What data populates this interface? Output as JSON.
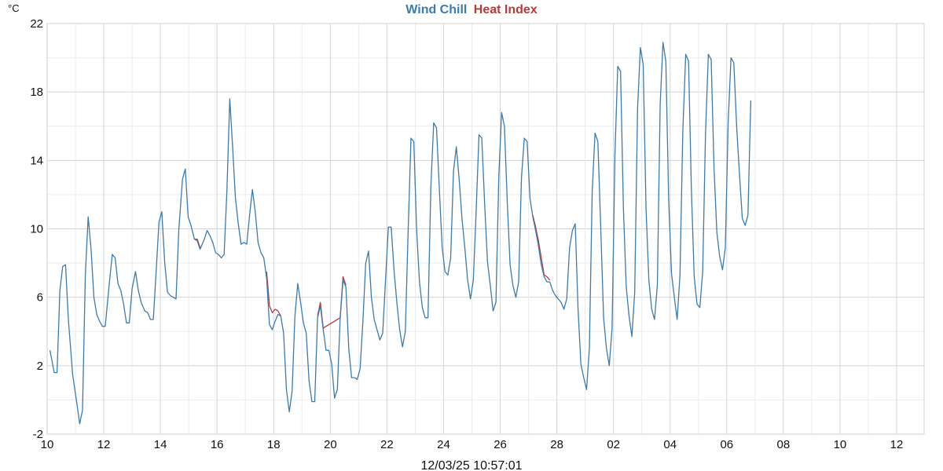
{
  "chart_data": {
    "type": "line",
    "title": "",
    "ylabel": "°C",
    "xlabel": "",
    "timestamp": "12/03/25 10:57:01",
    "ylim": [
      -2,
      22
    ],
    "yticks": [
      -2,
      2,
      6,
      10,
      14,
      18,
      22
    ],
    "xticks": [
      {
        "pos": 0,
        "label": "10"
      },
      {
        "pos": 2,
        "label": "12"
      },
      {
        "pos": 4,
        "label": "14"
      },
      {
        "pos": 6,
        "label": "16"
      },
      {
        "pos": 8,
        "label": "18"
      },
      {
        "pos": 10,
        "label": "20"
      },
      {
        "pos": 12,
        "label": "22"
      },
      {
        "pos": 14,
        "label": "24"
      },
      {
        "pos": 16,
        "label": "26"
      },
      {
        "pos": 18,
        "label": "28"
      },
      {
        "pos": 20,
        "label": "02"
      },
      {
        "pos": 22,
        "label": "04"
      },
      {
        "pos": 24,
        "label": "06"
      },
      {
        "pos": 26,
        "label": "08"
      },
      {
        "pos": 28,
        "label": "10"
      },
      {
        "pos": 30,
        "label": "12"
      }
    ],
    "xlim": [
      0,
      30.9
    ],
    "grid": true,
    "legend": "top-center",
    "x_unit": "day index from first tick label (fractional)",
    "series": [
      {
        "name": "Wind Chill",
        "color": "#3b7bb0",
        "points": [
          [
            0.1,
            2.9
          ],
          [
            0.25,
            1.6
          ],
          [
            0.35,
            1.6
          ],
          [
            0.45,
            6.4
          ],
          [
            0.55,
            7.8
          ],
          [
            0.65,
            7.9
          ],
          [
            0.75,
            4.7
          ],
          [
            0.9,
            1.5
          ],
          [
            1.05,
            -0.2
          ],
          [
            1.15,
            -1.4
          ],
          [
            1.25,
            -0.6
          ],
          [
            1.35,
            7.3
          ],
          [
            1.45,
            10.7
          ],
          [
            1.55,
            8.8
          ],
          [
            1.65,
            6.0
          ],
          [
            1.75,
            5.0
          ],
          [
            1.85,
            4.6
          ],
          [
            1.95,
            4.3
          ],
          [
            2.05,
            4.3
          ],
          [
            2.2,
            6.9
          ],
          [
            2.3,
            8.5
          ],
          [
            2.4,
            8.3
          ],
          [
            2.5,
            6.8
          ],
          [
            2.6,
            6.4
          ],
          [
            2.7,
            5.6
          ],
          [
            2.8,
            4.5
          ],
          [
            2.9,
            4.5
          ],
          [
            3.0,
            6.5
          ],
          [
            3.12,
            7.5
          ],
          [
            3.22,
            6.4
          ],
          [
            3.32,
            5.7
          ],
          [
            3.45,
            5.2
          ],
          [
            3.55,
            5.1
          ],
          [
            3.65,
            4.7
          ],
          [
            3.75,
            4.7
          ],
          [
            3.85,
            7.5
          ],
          [
            3.95,
            10.4
          ],
          [
            4.05,
            11.0
          ],
          [
            4.15,
            8.1
          ],
          [
            4.25,
            6.3
          ],
          [
            4.35,
            6.1
          ],
          [
            4.45,
            6.0
          ],
          [
            4.55,
            5.9
          ],
          [
            4.65,
            10.0
          ],
          [
            4.78,
            12.9
          ],
          [
            4.88,
            13.5
          ],
          [
            4.98,
            10.7
          ],
          [
            5.08,
            10.2
          ],
          [
            5.2,
            9.4
          ],
          [
            5.3,
            9.3
          ],
          [
            5.4,
            8.8
          ],
          [
            5.55,
            9.4
          ],
          [
            5.65,
            9.9
          ],
          [
            5.75,
            9.6
          ],
          [
            5.85,
            9.2
          ],
          [
            5.95,
            8.6
          ],
          [
            6.05,
            8.5
          ],
          [
            6.15,
            8.3
          ],
          [
            6.25,
            8.5
          ],
          [
            6.35,
            12.3
          ],
          [
            6.45,
            17.6
          ],
          [
            6.55,
            14.8
          ],
          [
            6.65,
            11.8
          ],
          [
            6.75,
            10.3
          ],
          [
            6.85,
            9.1
          ],
          [
            6.95,
            9.2
          ],
          [
            7.05,
            9.1
          ],
          [
            7.15,
            10.8
          ],
          [
            7.25,
            12.3
          ],
          [
            7.35,
            11.0
          ],
          [
            7.45,
            9.2
          ],
          [
            7.55,
            8.6
          ],
          [
            7.65,
            8.3
          ],
          [
            7.75,
            7.1
          ],
          [
            7.85,
            4.4
          ],
          [
            7.95,
            4.1
          ],
          [
            8.05,
            4.6
          ],
          [
            8.15,
            5.0
          ],
          [
            8.25,
            4.9
          ],
          [
            8.35,
            3.9
          ],
          [
            8.45,
            0.6
          ],
          [
            8.55,
            -0.7
          ],
          [
            8.65,
            0.5
          ],
          [
            8.75,
            4.9
          ],
          [
            8.85,
            6.8
          ],
          [
            8.95,
            5.7
          ],
          [
            9.05,
            4.5
          ],
          [
            9.15,
            3.9
          ],
          [
            9.25,
            1.1
          ],
          [
            9.35,
            -0.1
          ],
          [
            9.45,
            -0.1
          ],
          [
            9.55,
            4.8
          ],
          [
            9.65,
            5.5
          ],
          [
            9.75,
            4.1
          ],
          [
            9.85,
            2.9
          ],
          [
            9.95,
            2.9
          ],
          [
            10.05,
            2.1
          ],
          [
            10.15,
            0.1
          ],
          [
            10.25,
            0.6
          ],
          [
            10.35,
            4.8
          ],
          [
            10.45,
            7.0
          ],
          [
            10.55,
            6.6
          ],
          [
            10.65,
            3.0
          ],
          [
            10.75,
            1.3
          ],
          [
            10.85,
            1.3
          ],
          [
            10.95,
            1.2
          ],
          [
            11.05,
            1.8
          ],
          [
            11.15,
            4.6
          ],
          [
            11.25,
            8.0
          ],
          [
            11.35,
            8.7
          ],
          [
            11.45,
            6.0
          ],
          [
            11.55,
            4.7
          ],
          [
            11.65,
            4.1
          ],
          [
            11.75,
            3.5
          ],
          [
            11.85,
            3.9
          ],
          [
            11.95,
            7.0
          ],
          [
            12.05,
            10.1
          ],
          [
            12.15,
            10.1
          ],
          [
            12.25,
            7.6
          ],
          [
            12.35,
            5.7
          ],
          [
            12.45,
            4.1
          ],
          [
            12.55,
            3.1
          ],
          [
            12.65,
            4.0
          ],
          [
            12.75,
            9.9
          ],
          [
            12.85,
            15.3
          ],
          [
            12.95,
            15.1
          ],
          [
            13.05,
            9.9
          ],
          [
            13.15,
            6.9
          ],
          [
            13.25,
            5.4
          ],
          [
            13.35,
            4.8
          ],
          [
            13.45,
            4.8
          ],
          [
            13.55,
            12.5
          ],
          [
            13.65,
            16.2
          ],
          [
            13.75,
            15.9
          ],
          [
            13.85,
            12.3
          ],
          [
            13.95,
            8.9
          ],
          [
            14.05,
            7.5
          ],
          [
            14.15,
            7.3
          ],
          [
            14.25,
            8.3
          ],
          [
            14.35,
            13.4
          ],
          [
            14.45,
            14.8
          ],
          [
            14.55,
            12.9
          ],
          [
            14.65,
            10.6
          ],
          [
            14.75,
            8.9
          ],
          [
            14.85,
            7.0
          ],
          [
            14.95,
            5.9
          ],
          [
            15.05,
            7.0
          ],
          [
            15.15,
            11.0
          ],
          [
            15.25,
            15.5
          ],
          [
            15.35,
            15.3
          ],
          [
            15.45,
            11.5
          ],
          [
            15.55,
            8.1
          ],
          [
            15.65,
            6.7
          ],
          [
            15.75,
            5.2
          ],
          [
            15.85,
            5.7
          ],
          [
            15.95,
            13.0
          ],
          [
            16.05,
            16.8
          ],
          [
            16.15,
            16.0
          ],
          [
            16.25,
            11.6
          ],
          [
            16.35,
            7.9
          ],
          [
            16.45,
            6.7
          ],
          [
            16.55,
            6.0
          ],
          [
            16.65,
            6.9
          ],
          [
            16.75,
            13.0
          ],
          [
            16.85,
            15.3
          ],
          [
            16.95,
            15.1
          ],
          [
            17.05,
            11.8
          ],
          [
            17.15,
            10.7
          ],
          [
            17.25,
            9.9
          ],
          [
            17.35,
            9.0
          ],
          [
            17.45,
            7.9
          ],
          [
            17.55,
            7.2
          ],
          [
            17.65,
            6.9
          ],
          [
            17.75,
            6.9
          ],
          [
            17.85,
            6.4
          ],
          [
            17.95,
            6.1
          ],
          [
            18.05,
            5.9
          ],
          [
            18.15,
            5.7
          ],
          [
            18.25,
            5.3
          ],
          [
            18.35,
            5.9
          ],
          [
            18.45,
            8.9
          ],
          [
            18.55,
            9.9
          ],
          [
            18.65,
            10.3
          ],
          [
            18.75,
            5.3
          ],
          [
            18.85,
            2.1
          ],
          [
            18.95,
            1.3
          ],
          [
            19.05,
            0.6
          ],
          [
            19.15,
            3.0
          ],
          [
            19.25,
            12.2
          ],
          [
            19.35,
            15.6
          ],
          [
            19.45,
            15.1
          ],
          [
            19.55,
            10.0
          ],
          [
            19.65,
            4.8
          ],
          [
            19.75,
            3.0
          ],
          [
            19.85,
            2.0
          ],
          [
            19.95,
            4.2
          ],
          [
            20.05,
            14.3
          ],
          [
            20.15,
            19.5
          ],
          [
            20.25,
            19.2
          ],
          [
            20.35,
            11.2
          ],
          [
            20.45,
            6.6
          ],
          [
            20.55,
            4.9
          ],
          [
            20.65,
            3.7
          ],
          [
            20.75,
            6.3
          ],
          [
            20.85,
            17.0
          ],
          [
            20.95,
            20.6
          ],
          [
            21.05,
            19.6
          ],
          [
            21.15,
            11.2
          ],
          [
            21.25,
            7.0
          ],
          [
            21.35,
            5.3
          ],
          [
            21.45,
            4.7
          ],
          [
            21.55,
            6.7
          ],
          [
            21.65,
            17.3
          ],
          [
            21.75,
            20.9
          ],
          [
            21.85,
            19.8
          ],
          [
            21.95,
            11.7
          ],
          [
            22.05,
            7.4
          ],
          [
            22.15,
            6.0
          ],
          [
            22.25,
            4.7
          ],
          [
            22.35,
            7.3
          ],
          [
            22.45,
            15.7
          ],
          [
            22.55,
            20.2
          ],
          [
            22.65,
            19.8
          ],
          [
            22.75,
            12.3
          ],
          [
            22.85,
            7.2
          ],
          [
            22.95,
            5.6
          ],
          [
            23.05,
            5.4
          ],
          [
            23.15,
            7.5
          ],
          [
            23.25,
            15.6
          ],
          [
            23.35,
            20.2
          ],
          [
            23.45,
            19.9
          ],
          [
            23.55,
            13.6
          ],
          [
            23.65,
            9.8
          ],
          [
            23.75,
            8.4
          ],
          [
            23.85,
            7.6
          ],
          [
            23.95,
            8.9
          ],
          [
            24.05,
            16.2
          ],
          [
            24.15,
            20.0
          ],
          [
            24.25,
            19.7
          ],
          [
            24.35,
            16.0
          ],
          [
            24.45,
            13.2
          ],
          [
            24.55,
            10.6
          ],
          [
            24.65,
            10.2
          ],
          [
            24.75,
            10.8
          ],
          [
            24.85,
            17.5
          ]
        ]
      },
      {
        "name": "Heat Index",
        "color": "#b83a3a",
        "points": [
          [
            5.2,
            9.4
          ],
          [
            5.3,
            9.4
          ],
          [
            5.4,
            8.9
          ],
          [
            7.75,
            7.5
          ],
          [
            7.85,
            5.5
          ],
          [
            7.95,
            5.1
          ],
          [
            8.05,
            5.3
          ],
          [
            8.15,
            5.2
          ],
          [
            8.25,
            4.9
          ],
          [
            9.55,
            4.9
          ],
          [
            9.65,
            5.7
          ],
          [
            9.75,
            4.2
          ],
          [
            10.35,
            4.8
          ],
          [
            10.45,
            7.2
          ],
          [
            10.55,
            6.7
          ],
          [
            17.15,
            10.8
          ],
          [
            17.25,
            10.1
          ],
          [
            17.35,
            9.3
          ],
          [
            17.55,
            7.3
          ],
          [
            17.65,
            7.2
          ],
          [
            17.75,
            7.0
          ]
        ]
      }
    ]
  }
}
